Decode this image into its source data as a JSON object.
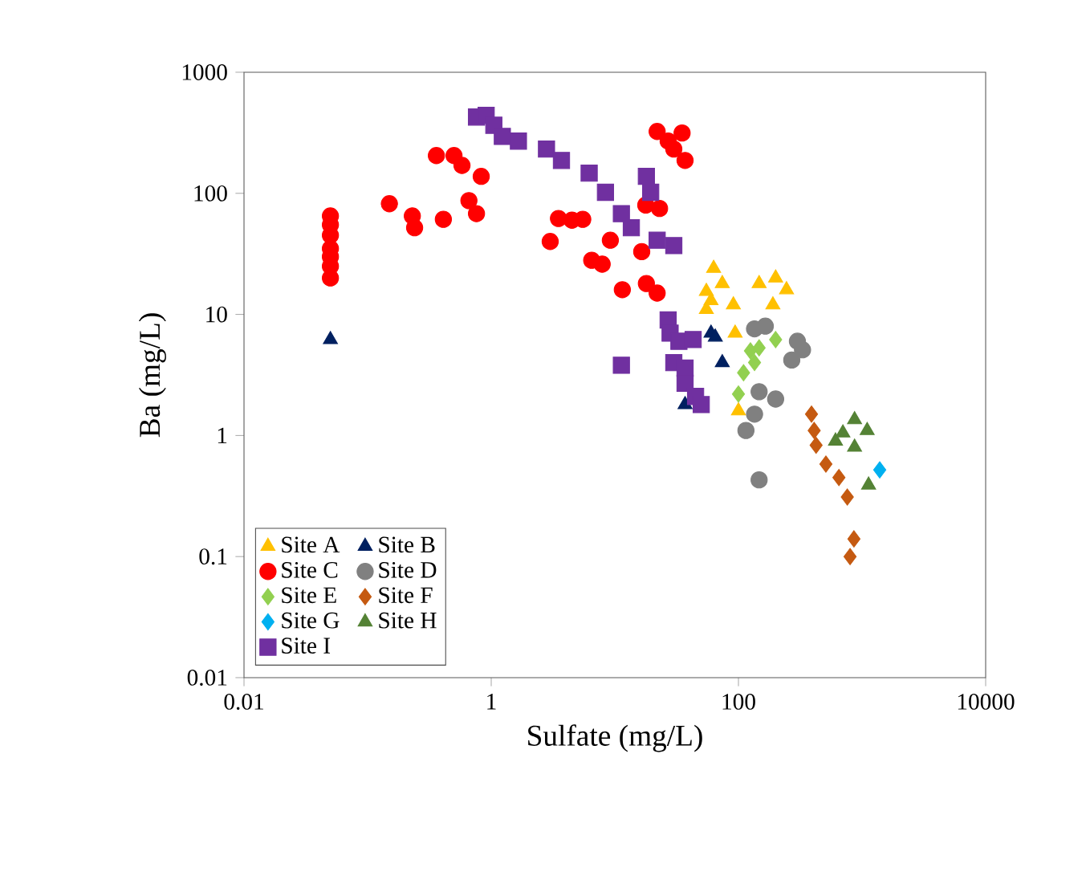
{
  "chart_data": {
    "type": "scatter",
    "xlabel": "Sulfate (mg/L)",
    "ylabel": "Ba (mg/L)",
    "log": "xy",
    "grid": false,
    "legend": "bottom left",
    "xlim": [
      0.01,
      10000
    ],
    "ylim": [
      0.01,
      1000
    ],
    "xticks": [
      0.01,
      1,
      100,
      10000
    ],
    "yticks": [
      0.01,
      0.1,
      1,
      10,
      100,
      1000
    ],
    "series": [
      {
        "name": "Site A",
        "color": "#ffc000",
        "marker": "triangle",
        "x": [
          63,
          55,
          74,
          91,
          55,
          147,
          200,
          245,
          190,
          94,
          100,
          60
        ],
        "values": [
          24,
          15.5,
          18,
          12,
          11,
          18,
          20,
          16,
          12,
          7,
          1.6,
          13
        ]
      },
      {
        "name": "Site B",
        "color": "#002060",
        "marker": "triangle",
        "x": [
          0.05,
          60,
          74,
          37,
          65
        ],
        "values": [
          6.2,
          7,
          4,
          1.8,
          6.5
        ]
      },
      {
        "name": "Site C",
        "color": "#ff0000",
        "marker": "circle",
        "x": [
          0.05,
          0.05,
          0.05,
          0.05,
          0.05,
          0.05,
          0.05,
          0.15,
          0.23,
          0.24,
          0.41,
          0.36,
          0.5,
          0.58,
          0.83,
          0.66,
          0.76,
          5.5,
          9.2,
          7.9,
          11.5,
          16.5,
          18,
          22,
          17.8,
          23,
          22,
          35,
          30,
          37,
          27,
          4.5,
          3.5,
          3,
          6.5
        ],
        "values": [
          20,
          25,
          30,
          35,
          45,
          55,
          65,
          82,
          65,
          52,
          61,
          205,
          205,
          170,
          138,
          87,
          68,
          61,
          41,
          26,
          16,
          33,
          18,
          15,
          80,
          75,
          324,
          315,
          232,
          187,
          270,
          60,
          62,
          40,
          28
        ]
      },
      {
        "name": "Site D",
        "color": "#808080",
        "marker": "circle",
        "x": [
          135,
          165,
          300,
          270,
          147,
          200,
          135,
          115,
          147,
          330
        ],
        "values": [
          7.6,
          8,
          6,
          4.2,
          2.3,
          2,
          1.5,
          1.1,
          0.43,
          5.1
        ]
      },
      {
        "name": "Site E",
        "color": "#92d050",
        "marker": "diamond",
        "x": [
          125,
          110,
          100,
          135,
          200,
          147
        ],
        "values": [
          5,
          3.3,
          2.2,
          4,
          6.2,
          5.3
        ]
      },
      {
        "name": "Site F",
        "color": "#c55a11",
        "marker": "diamond",
        "x": [
          390,
          410,
          425,
          510,
          650,
          760,
          860,
          800
        ],
        "values": [
          1.5,
          1.1,
          0.83,
          0.58,
          0.45,
          0.31,
          0.14,
          0.1
        ]
      },
      {
        "name": "Site G",
        "color": "#00b0f0",
        "marker": "diamond",
        "x": [
          1390
        ],
        "values": [
          0.52
        ]
      },
      {
        "name": "Site H",
        "color": "#548235",
        "marker": "triangle",
        "x": [
          870,
          1100,
          610,
          870,
          1130,
          700
        ],
        "values": [
          1.35,
          1.1,
          0.9,
          0.8,
          0.39,
          1.05
        ]
      },
      {
        "name": "Site I",
        "color": "#7030a0",
        "marker": "square",
        "x": [
          0.76,
          0.91,
          1.05,
          1.23,
          1.66,
          2.8,
          3.7,
          6.2,
          8.4,
          11.3,
          13.6,
          18,
          19.5,
          22,
          30,
          27,
          11.3,
          28,
          33,
          30,
          37,
          37,
          45,
          50,
          43
        ],
        "values": [
          427,
          440,
          365,
          295,
          270,
          232,
          187,
          147,
          102,
          68,
          52,
          138,
          102,
          41,
          37,
          9,
          3.8,
          7,
          6,
          4,
          3.6,
          2.7,
          2.1,
          1.8,
          6.2
        ]
      }
    ]
  }
}
